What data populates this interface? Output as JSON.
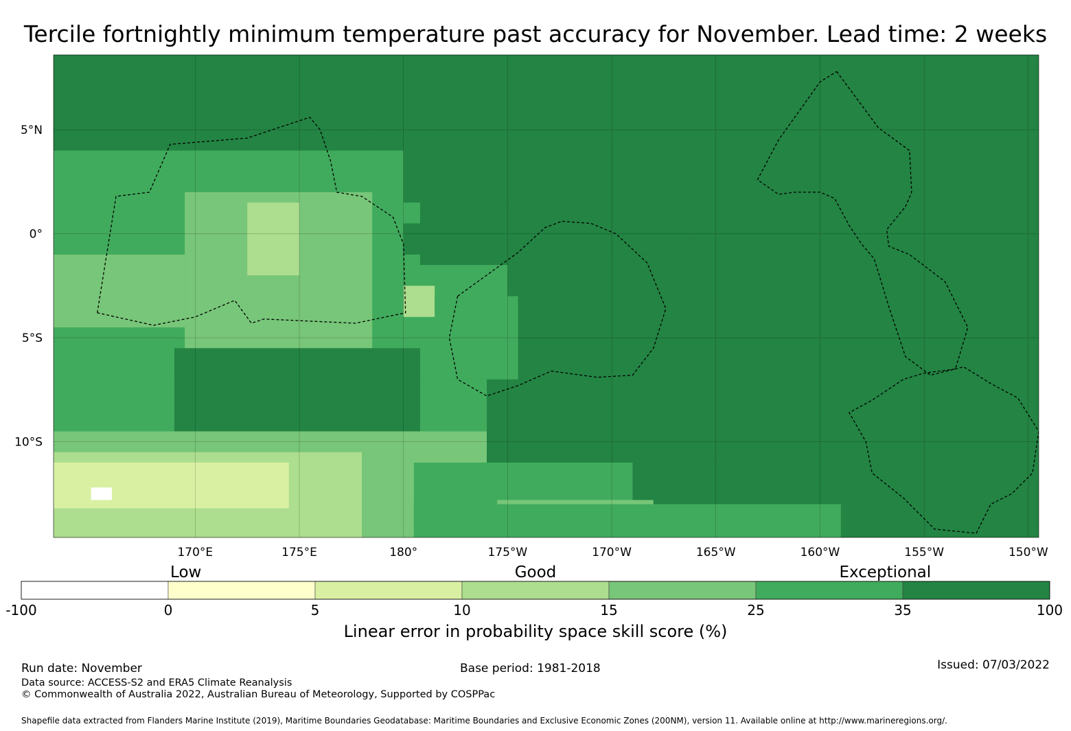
{
  "title": "Tercile fortnightly minimum temperature past accuracy for November. Lead time: 2 weeks",
  "map": {
    "lon_min": 163.2,
    "lon_max": 210.5,
    "lat_min": -14.6,
    "lat_max": 8.6,
    "ocean_color": "#238443",
    "lon_ticks": [
      {
        "lon": 170,
        "label": "170°E"
      },
      {
        "lon": 175,
        "label": "175°E"
      },
      {
        "lon": 180,
        "label": "180°"
      },
      {
        "lon": 185,
        "label": "175°W"
      },
      {
        "lon": 190,
        "label": "170°W"
      },
      {
        "lon": 195,
        "label": "165°W"
      },
      {
        "lon": 200,
        "label": "160°W"
      },
      {
        "lon": 205,
        "label": "155°W"
      },
      {
        "lon": 210,
        "label": "150°W"
      }
    ],
    "lat_ticks": [
      {
        "lat": 5,
        "label": "5°N"
      },
      {
        "lat": 0,
        "label": "0°"
      },
      {
        "lat": -5,
        "label": "5°S"
      },
      {
        "lat": -10,
        "label": "10°S"
      }
    ],
    "skill_regions": [
      {
        "name": "western-region",
        "bins": [
          {
            "band": 6,
            "lat": [
              3.5,
              5.5
            ],
            "lon": [
              163.2,
              178.5
            ]
          },
          {
            "band": 5,
            "lat": [
              -1.5,
              4.0
            ],
            "lon": [
              163.2,
              180.8
            ]
          },
          {
            "band": 5,
            "lat": [
              -7.0,
              -1.5
            ],
            "lon": [
              163.2,
              185.0
            ]
          },
          {
            "band": 4,
            "lat": [
              -6.5,
              2.0
            ],
            "lon": [
              169.5,
              178.5
            ]
          },
          {
            "band": 4,
            "lat": [
              -4.5,
              -1.0
            ],
            "lon": [
              163.2,
              169.5
            ]
          },
          {
            "band": 3,
            "lat": [
              -2.0,
              1.5
            ],
            "lon": [
              172.5,
              175.0
            ]
          },
          {
            "band": 3,
            "lat": [
              -4.0,
              -2.5
            ],
            "lon": [
              180.0,
              181.5
            ]
          },
          {
            "band": 6,
            "lat": [
              -9.5,
              -5.5
            ],
            "lon": [
              169.0,
              180.8
            ]
          },
          {
            "band": 5,
            "lat": [
              -9.5,
              -7.0
            ],
            "lon": [
              163.2,
              169.0
            ]
          },
          {
            "band": 5,
            "lat": [
              -10.5,
              -7.0
            ],
            "lon": [
              180.8,
              184.5
            ]
          },
          {
            "band": 4,
            "lat": [
              -14.6,
              -9.5
            ],
            "lon": [
              163.2,
              184.0
            ]
          },
          {
            "band": 3,
            "lat": [
              -14.6,
              -10.5
            ],
            "lon": [
              163.2,
              178.0
            ]
          },
          {
            "band": 2,
            "lat": [
              -13.2,
              -11.0
            ],
            "lon": [
              163.2,
              174.5
            ]
          },
          {
            "band": 0,
            "lat": [
              -12.8,
              -12.2
            ],
            "lon": [
              165.0,
              166.0
            ]
          },
          {
            "band": 5,
            "lat": [
              -14.6,
              -11.0
            ],
            "lon": [
              180.5,
              191.0
            ]
          },
          {
            "band": 4,
            "lat": [
              -14.6,
              -12.8
            ],
            "lon": [
              184.5,
              192.0
            ]
          }
        ]
      },
      {
        "name": "central-region",
        "bins": [
          {
            "band": 6,
            "lat": [
              1.5,
              5.5
            ],
            "lon": [
              180.0,
              185.0
            ]
          },
          {
            "band": 6,
            "lat": [
              -1.0,
              4.5
            ],
            "lon": [
              190.0,
              194.0
            ]
          },
          {
            "band": 6,
            "lat": [
              -11.0,
              -3.0
            ],
            "lon": [
              184.0,
              195.0
            ]
          },
          {
            "band": 6,
            "lat": [
              -1.0,
              0.5
            ],
            "lon": [
              180.0,
              183.0
            ]
          },
          {
            "band": 5,
            "lat": [
              -7.0,
              -3.0
            ],
            "lon": [
              181.5,
              185.5
            ]
          },
          {
            "band": 6,
            "lat": [
              -14.6,
              -12.0
            ],
            "lon": [
              195.0,
              208.5
            ]
          },
          {
            "band": 6,
            "lat": [
              -8.5,
              -7.0
            ],
            "lon": [
              197.5,
              201.0
            ]
          },
          {
            "band": 6,
            "lat": [
              -12.0,
              -11.0
            ],
            "lon": [
              199.0,
              201.0
            ]
          },
          {
            "band": 5,
            "lat": [
              -14.6,
              -13.0
            ],
            "lon": [
              180.5,
              201.0
            ]
          }
        ]
      }
    ],
    "eez_paths": [
      {
        "name": "eez-boundary-west",
        "points": [
          [
            165.3,
            -3.8
          ],
          [
            166.2,
            1.8
          ],
          [
            167.8,
            2.0
          ],
          [
            168.8,
            4.3
          ],
          [
            172.5,
            4.6
          ],
          [
            175.5,
            5.6
          ],
          [
            176.0,
            5.0
          ],
          [
            176.5,
            3.5
          ],
          [
            176.8,
            2.0
          ],
          [
            178.0,
            1.8
          ],
          [
            179.5,
            0.8
          ],
          [
            180.0,
            -0.5
          ],
          [
            180.1,
            -3.8
          ],
          [
            177.7,
            -4.3
          ],
          [
            173.3,
            -4.1
          ],
          [
            172.7,
            -4.3
          ],
          [
            171.9,
            -3.2
          ],
          [
            170.0,
            -4.0
          ],
          [
            168.0,
            -4.4
          ],
          [
            165.3,
            -3.8
          ]
        ]
      },
      {
        "name": "eez-boundary-central",
        "points": [
          [
            182.6,
            -3.0
          ],
          [
            185.5,
            -0.9
          ],
          [
            186.8,
            0.3
          ],
          [
            187.6,
            0.6
          ],
          [
            189.0,
            0.5
          ],
          [
            190.2,
            0.0
          ],
          [
            191.7,
            -1.4
          ],
          [
            192.6,
            -3.6
          ],
          [
            192.0,
            -5.5
          ],
          [
            191.0,
            -6.8
          ],
          [
            189.3,
            -6.9
          ],
          [
            187.1,
            -6.6
          ],
          [
            185.5,
            -7.3
          ],
          [
            184.0,
            -7.8
          ],
          [
            182.6,
            -7.0
          ],
          [
            182.2,
            -5.0
          ],
          [
            182.6,
            -3.0
          ]
        ]
      },
      {
        "name": "eez-boundary-east",
        "points": [
          [
            200.8,
            7.8
          ],
          [
            202.8,
            5.1
          ],
          [
            204.3,
            4.0
          ],
          [
            204.4,
            2.0
          ],
          [
            204.1,
            1.3
          ],
          [
            203.2,
            0.2
          ],
          [
            203.3,
            -0.6
          ],
          [
            204.3,
            -1.0
          ],
          [
            206.0,
            -2.3
          ],
          [
            207.1,
            -4.5
          ],
          [
            206.5,
            -6.5
          ],
          [
            205.0,
            -6.7
          ],
          [
            204.0,
            -7.0
          ],
          [
            202.5,
            -8.0
          ],
          [
            201.4,
            -8.6
          ],
          [
            202.2,
            -10.0
          ],
          [
            202.5,
            -11.5
          ],
          [
            204.0,
            -12.7
          ],
          [
            205.5,
            -14.2
          ],
          [
            207.5,
            -14.4
          ],
          [
            208.2,
            -13.0
          ],
          [
            209.2,
            -12.5
          ],
          [
            210.2,
            -11.5
          ],
          [
            210.5,
            -9.5
          ],
          [
            209.5,
            -7.9
          ],
          [
            208.2,
            -7.2
          ],
          [
            206.9,
            -6.4
          ],
          [
            205.3,
            -6.8
          ],
          [
            204.1,
            -5.9
          ],
          [
            203.3,
            -3.5
          ],
          [
            202.6,
            -1.2
          ],
          [
            202.0,
            -0.5
          ],
          [
            201.4,
            0.4
          ],
          [
            200.7,
            1.7
          ],
          [
            200.0,
            2.0
          ],
          [
            198.8,
            2.0
          ],
          [
            198.0,
            1.9
          ],
          [
            197.0,
            2.6
          ],
          [
            198.0,
            4.5
          ],
          [
            200.0,
            7.3
          ],
          [
            200.8,
            7.8
          ]
        ]
      }
    ]
  },
  "legend": {
    "categories": [
      {
        "label": "Low",
        "at": 0.16
      },
      {
        "label": "Good",
        "at": 0.5
      },
      {
        "label": "Exceptional",
        "at": 0.84
      }
    ],
    "colors": [
      "#ffffff",
      "#ffffcc",
      "#d9f0a3",
      "#addd8e",
      "#78c679",
      "#41ab5d",
      "#238443"
    ],
    "bounds": [
      "-100",
      "0",
      "5",
      "10",
      "15",
      "25",
      "35",
      "100"
    ],
    "title": "Linear error in probability space skill score (%)"
  },
  "footer": {
    "run_date": "Run date: November",
    "base_period": "Base period: 1981-2018",
    "issued": "Issued: 07/03/2022",
    "data_source": "Data source: ACCESS-S2 and ERA5 Climate Reanalysis",
    "copyright": "© Commonwealth of Australia 2022, Australian Bureau of Meteorology, Supported by COSPPac",
    "shapefile": "Shapefile data extracted from Flanders Marine Institute (2019), Maritime Boundaries Geodatabase: Maritime Boundaries and Exclusive Economic Zones (200NM), version 11. Available online at http://www.marineregions.org/."
  }
}
